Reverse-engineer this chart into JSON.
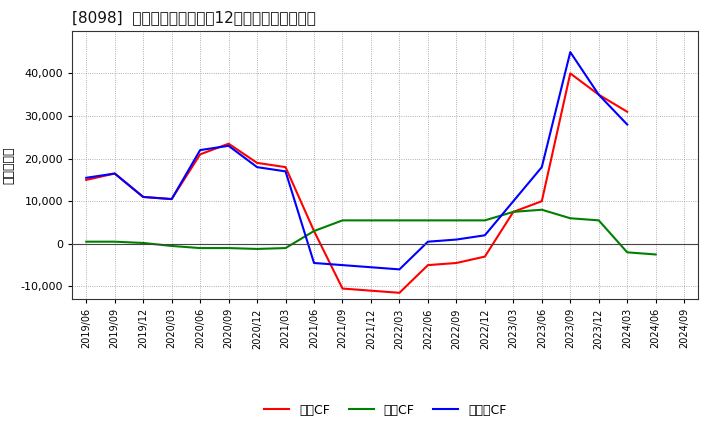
{
  "title": "[8098]  キャッシュフローの12か月移動合計の推移",
  "ylabel": "（百万円）",
  "background_color": "#ffffff",
  "plot_bg_color": "#ffffff",
  "grid_color": "#999999",
  "dates": [
    "2019/06",
    "2019/09",
    "2019/12",
    "2020/03",
    "2020/06",
    "2020/09",
    "2020/12",
    "2021/03",
    "2021/06",
    "2021/09",
    "2021/12",
    "2022/03",
    "2022/06",
    "2022/09",
    "2022/12",
    "2023/03",
    "2023/06",
    "2023/09",
    "2023/12",
    "2024/03",
    "2024/06",
    "2024/09"
  ],
  "operating_cf": [
    15000,
    16500,
    11000,
    10500,
    21000,
    23500,
    19000,
    18000,
    3000,
    -10500,
    -11000,
    -11500,
    -5000,
    -4500,
    -3000,
    7500,
    10000,
    40000,
    35000,
    31000,
    null,
    null
  ],
  "investing_cf": [
    500,
    500,
    200,
    -500,
    -1000,
    -1000,
    -1200,
    -1000,
    3000,
    5500,
    5500,
    5500,
    5500,
    5500,
    5500,
    7500,
    8000,
    6000,
    5500,
    -2000,
    -2500,
    null
  ],
  "free_cf": [
    15500,
    16500,
    11000,
    10500,
    22000,
    23000,
    18000,
    17000,
    -4500,
    -5000,
    -5500,
    -6000,
    500,
    1000,
    2000,
    10000,
    18000,
    45000,
    35000,
    28000,
    null,
    null
  ],
  "operating_color": "#ff0000",
  "investing_color": "#008000",
  "free_color": "#0000ff",
  "ylim": [
    -13000,
    50000
  ],
  "yticks": [
    -10000,
    0,
    10000,
    20000,
    30000,
    40000
  ],
  "legend_labels": [
    "営業CF",
    "投資CF",
    "フリーCF"
  ]
}
